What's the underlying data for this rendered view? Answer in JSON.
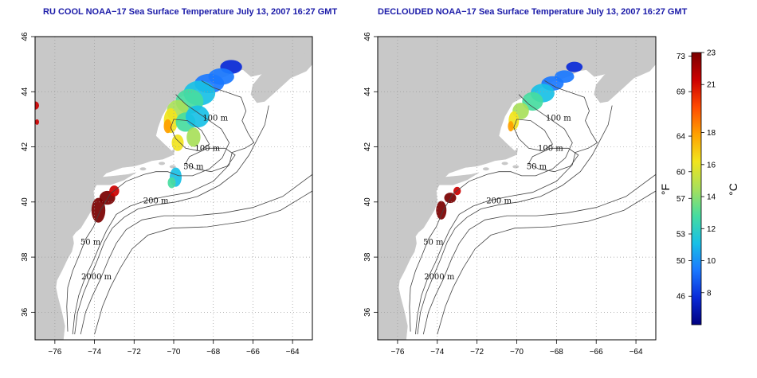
{
  "panels": [
    {
      "title": "RU COOL NOAA−17 Sea Surface Temperature July 13, 2007 16:27 GMT"
    },
    {
      "title": "DECLOUDED NOAA−17 Sea Surface Temperature July 13, 2007 16:27 GMT"
    }
  ],
  "map": {
    "lon_range": [
      -77,
      -63
    ],
    "lat_range": [
      35,
      46
    ],
    "lon_ticks": [
      "−76",
      "−74",
      "−72",
      "−70",
      "−68",
      "−66",
      "−64"
    ],
    "lat_ticks": [
      "36",
      "38",
      "40",
      "42",
      "44",
      "46"
    ],
    "grid": "dotted",
    "contour_labels": [
      {
        "text": "100 m",
        "lon": -67.9,
        "lat": 42.95
      },
      {
        "text": "100 m",
        "lon": -68.3,
        "lat": 41.85
      },
      {
        "text": "50 m",
        "lon": -69.0,
        "lat": 41.2
      },
      {
        "text": "200 m",
        "lon": -70.9,
        "lat": 39.95
      },
      {
        "text": "50 m",
        "lon": -74.2,
        "lat": 38.45
      },
      {
        "text": "2000 m",
        "lon": -73.9,
        "lat": 37.2
      }
    ],
    "land_color": "#c8c8c8",
    "contour_color": "#444444"
  },
  "colorbar": {
    "fahrenheit_label": "°F",
    "celsius_label": "°C",
    "fahrenheit_ticks": [
      "73",
      "69",
      "64",
      "60",
      "57",
      "53",
      "50",
      "46"
    ],
    "celsius_ticks": [
      "23",
      "21",
      "18",
      "16",
      "14",
      "12",
      "10",
      "8"
    ],
    "colors": [
      "#7a0000",
      "#cc0000",
      "#ff4a00",
      "#ffa000",
      "#f2e41c",
      "#a8e05a",
      "#46dca0",
      "#18c0e6",
      "#1a78ff",
      "#0a2ad8",
      "#000080"
    ]
  }
}
